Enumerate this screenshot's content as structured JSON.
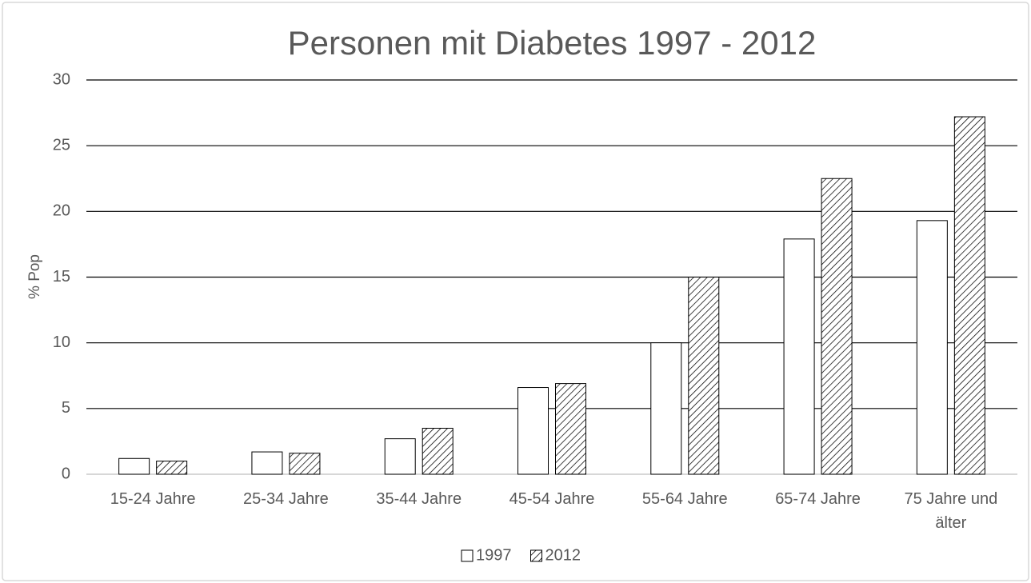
{
  "chart_data": {
    "type": "bar",
    "title": "Personen mit Diabetes 1997 - 2012",
    "y_label": "% Pop",
    "categories": [
      "15-24 Jahre",
      "25-34 Jahre",
      "35-44 Jahre",
      "45-54 Jahre",
      "55-64 Jahre",
      "65-74 Jahre",
      "75 Jahre und älter"
    ],
    "series": [
      {
        "name": "1997",
        "color": "#ffffff",
        "hatch": false,
        "values": [
          1.2,
          1.7,
          2.7,
          6.6,
          10.0,
          17.9,
          19.3
        ]
      },
      {
        "name": "2012",
        "color": "#ffffff",
        "hatch": true,
        "values": [
          1.0,
          1.6,
          3.5,
          6.9,
          15.0,
          22.5,
          27.2
        ]
      }
    ],
    "ylim": [
      0,
      30
    ],
    "yticks": [
      0,
      5,
      10,
      15,
      20,
      25,
      30
    ],
    "grid": true,
    "legend": "bottom"
  }
}
